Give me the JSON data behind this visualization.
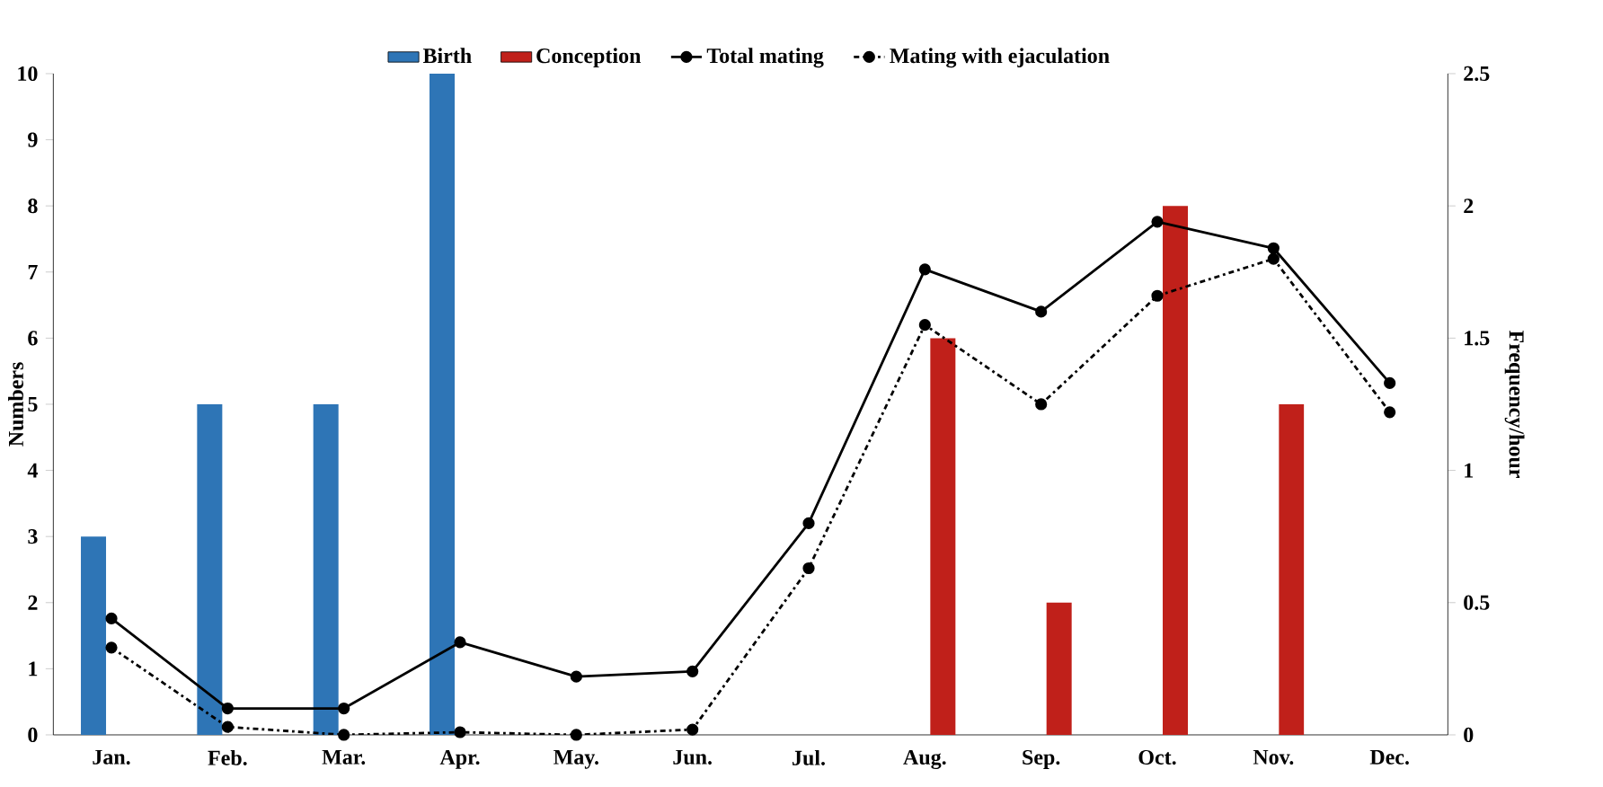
{
  "chart_data": {
    "type": "bar",
    "ylabel": "Numbers",
    "y2label": "Frequency/hour",
    "categories": [
      "Jan.",
      "Feb.",
      "Mar.",
      "Apr.",
      "May.",
      "Jun.",
      "Jul.",
      "Aug.",
      "Sep.",
      "Oct.",
      "Nov.",
      "Dec."
    ],
    "ylim": [
      0,
      10
    ],
    "yticks": [
      0,
      1,
      2,
      3,
      4,
      5,
      6,
      7,
      8,
      9,
      10
    ],
    "y2lim": [
      0,
      2.5
    ],
    "y2ticks": [
      0,
      0.5,
      1,
      1.5,
      2,
      2.5
    ],
    "legend": "top",
    "series": [
      {
        "name": "Birth",
        "color": "#2e75b6",
        "values": [
          3,
          5,
          5,
          10,
          null,
          null,
          null,
          null,
          null,
          null,
          null,
          null
        ]
      },
      {
        "name": "Conception",
        "color": "#c0201a",
        "values": [
          null,
          null,
          null,
          null,
          null,
          null,
          null,
          6,
          2,
          8,
          5,
          null
        ]
      },
      {
        "name": "Total mating",
        "type": "line",
        "axis": "y2",
        "color": "#000000",
        "marker": "circle",
        "line_style": "solid",
        "values": [
          0.44,
          0.1,
          0.1,
          0.35,
          0.22,
          0.24,
          0.8,
          1.76,
          1.6,
          1.94,
          1.84,
          1.33
        ]
      },
      {
        "name": "Mating with ejaculation",
        "type": "line",
        "axis": "y2",
        "color": "#000000",
        "marker": "circle",
        "line_style": "dashed",
        "values": [
          0.33,
          0.03,
          0,
          0.01,
          0,
          0.02,
          0.63,
          1.55,
          1.25,
          1.66,
          1.8,
          1.22
        ]
      }
    ]
  }
}
